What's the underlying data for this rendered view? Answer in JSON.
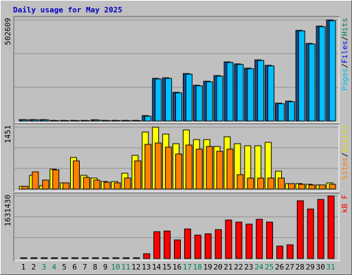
{
  "title": "Daily usage for May 2025",
  "chart_data": [
    {
      "type": "bar",
      "categories": [
        "1",
        "2",
        "3",
        "4",
        "5",
        "6",
        "7",
        "8",
        "9",
        "10",
        "11",
        "12",
        "13",
        "14",
        "15",
        "16",
        "17",
        "18",
        "19",
        "20",
        "21",
        "22",
        "23",
        "24",
        "25",
        "26",
        "27",
        "28",
        "29",
        "30",
        "31"
      ],
      "category_colors": [
        "#000000",
        "#000000",
        "#00805c",
        "#00805c",
        "#000000",
        "#000000",
        "#000000",
        "#000000",
        "#000000",
        "#00805c",
        "#00805c",
        "#000000",
        "#000000",
        "#000000",
        "#000000",
        "#000000",
        "#00805c",
        "#00805c",
        "#000000",
        "#000000",
        "#000000",
        "#000000",
        "#000000",
        "#00805c",
        "#00805c",
        "#000000",
        "#000000",
        "#000000",
        "#000000",
        "#000000",
        "#00805c"
      ],
      "ylim": [
        0,
        502609
      ],
      "yticks": [
        502609
      ],
      "legend": [
        {
          "text": "Pages",
          "color": "#00c0ff"
        },
        {
          "text": "/",
          "color": "#000000"
        },
        {
          "text": "Files",
          "color": "#0000ff"
        },
        {
          "text": "/",
          "color": "#000000"
        },
        {
          "text": "Hits",
          "color": "#00805c"
        }
      ],
      "series": [
        {
          "name": "Files",
          "color": "#1a4a8a",
          "values": [
            7000,
            7000,
            7000,
            3000,
            3000,
            3000,
            3000,
            6000,
            3000,
            3000,
            3000,
            3000,
            27000,
            212000,
            215000,
            143000,
            236000,
            178000,
            198000,
            226000,
            294000,
            284000,
            263000,
            304000,
            277000,
            89000,
            99000,
            451000,
            386000,
            472000,
            502609
          ]
        },
        {
          "name": "Pages",
          "color": "#00c0ff",
          "values": [
            6000,
            6000,
            6000,
            2000,
            2000,
            2000,
            2000,
            5000,
            2000,
            2000,
            2000,
            2000,
            24000,
            209000,
            212000,
            140000,
            233000,
            175000,
            195000,
            223000,
            291000,
            281000,
            260000,
            301000,
            274000,
            86000,
            96000,
            448000,
            383000,
            469000,
            499000
          ]
        }
      ]
    },
    {
      "type": "bar",
      "ylim": [
        0,
        1451
      ],
      "yticks": [
        1451
      ],
      "legend": [
        {
          "text": "Sites",
          "color": "#ff8000"
        },
        {
          "text": "/",
          "color": "#000000"
        },
        {
          "text": "Visits",
          "color": "#e0e000"
        }
      ],
      "series": [
        {
          "name": "Visits",
          "color": "#ffff00",
          "values": [
            64,
            322,
            81,
            467,
            145,
            741,
            322,
            258,
            177,
            177,
            371,
            790,
            1338,
            1451,
            1290,
            1064,
            1387,
            1161,
            1161,
            999,
            1225,
            1064,
            1016,
            1016,
            1096,
            419,
            129,
            129,
            113,
            97,
            145
          ]
        },
        {
          "name": "Sites",
          "color": "#ff8000",
          "values": [
            64,
            403,
            210,
            451,
            145,
            661,
            274,
            210,
            161,
            145,
            258,
            661,
            1048,
            1080,
            983,
            822,
            1032,
            935,
            999,
            886,
            935,
            338,
            258,
            258,
            258,
            258,
            129,
            113,
            97,
            97,
            113
          ]
        }
      ]
    },
    {
      "type": "bar",
      "ylim": [
        0,
        1631430
      ],
      "yticks": [
        1631430
      ],
      "legend": [
        {
          "text": "kB F",
          "color": "#ff0000"
        }
      ],
      "series": [
        {
          "name": "kB F",
          "color": "#ff0000",
          "values": [
            20000,
            20000,
            20000,
            20000,
            20000,
            20000,
            20000,
            20000,
            20000,
            20000,
            20000,
            20000,
            125000,
            700000,
            717000,
            484000,
            771000,
            610000,
            645000,
            753000,
            1004000,
            950000,
            896000,
            1022000,
            950000,
            323000,
            358000,
            1506000,
            1291000,
            1541000,
            1631430
          ]
        }
      ]
    }
  ]
}
